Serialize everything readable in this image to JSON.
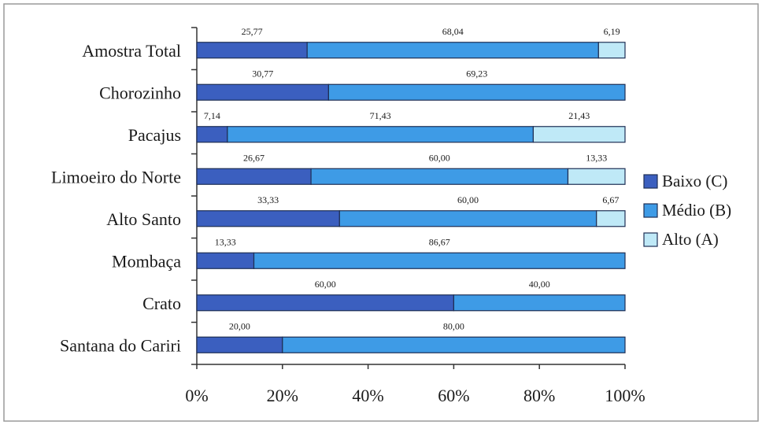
{
  "chart_data": {
    "type": "bar",
    "orientation": "horizontal",
    "stacked": "percent",
    "categories": [
      "Amostra Total",
      "Chorozinho",
      "Pacajus",
      "Limoeiro do Norte",
      "Alto Santo",
      "Mombaça",
      "Crato",
      "Santana do Cariri"
    ],
    "series": [
      {
        "name": "Baixo (C)",
        "color": "#3b5fbf",
        "values": [
          25.77,
          30.77,
          7.14,
          26.67,
          33.33,
          13.33,
          60.0,
          20.0
        ],
        "labels": [
          "25,77",
          "30,77",
          "7,14",
          "26,67",
          "33,33",
          "13,33",
          "60,00",
          "20,00"
        ]
      },
      {
        "name": "Médio (B)",
        "color": "#3e9be6",
        "values": [
          68.04,
          69.23,
          71.43,
          60.0,
          60.0,
          86.67,
          40.0,
          80.0
        ],
        "labels": [
          "68,04",
          "69,23",
          "71,43",
          "60,00",
          "60,00",
          "86,67",
          "40,00",
          "80,00"
        ]
      },
      {
        "name": "Alto (A)",
        "color": "#bfe9f7",
        "values": [
          6.19,
          0,
          21.43,
          13.33,
          6.67,
          0,
          0,
          0
        ],
        "labels": [
          "6,19",
          "",
          "21,43",
          "13,33",
          "6,67",
          "",
          "",
          ""
        ]
      }
    ],
    "xlim": [
      0,
      100
    ],
    "xticks": [
      {
        "value": 0,
        "label": "0%"
      },
      {
        "value": 20,
        "label": "20%"
      },
      {
        "value": 40,
        "label": "40%"
      },
      {
        "value": 60,
        "label": "60%"
      },
      {
        "value": 80,
        "label": "80%"
      },
      {
        "value": 100,
        "label": "100%"
      }
    ],
    "legend_position": "right",
    "grid": false
  }
}
